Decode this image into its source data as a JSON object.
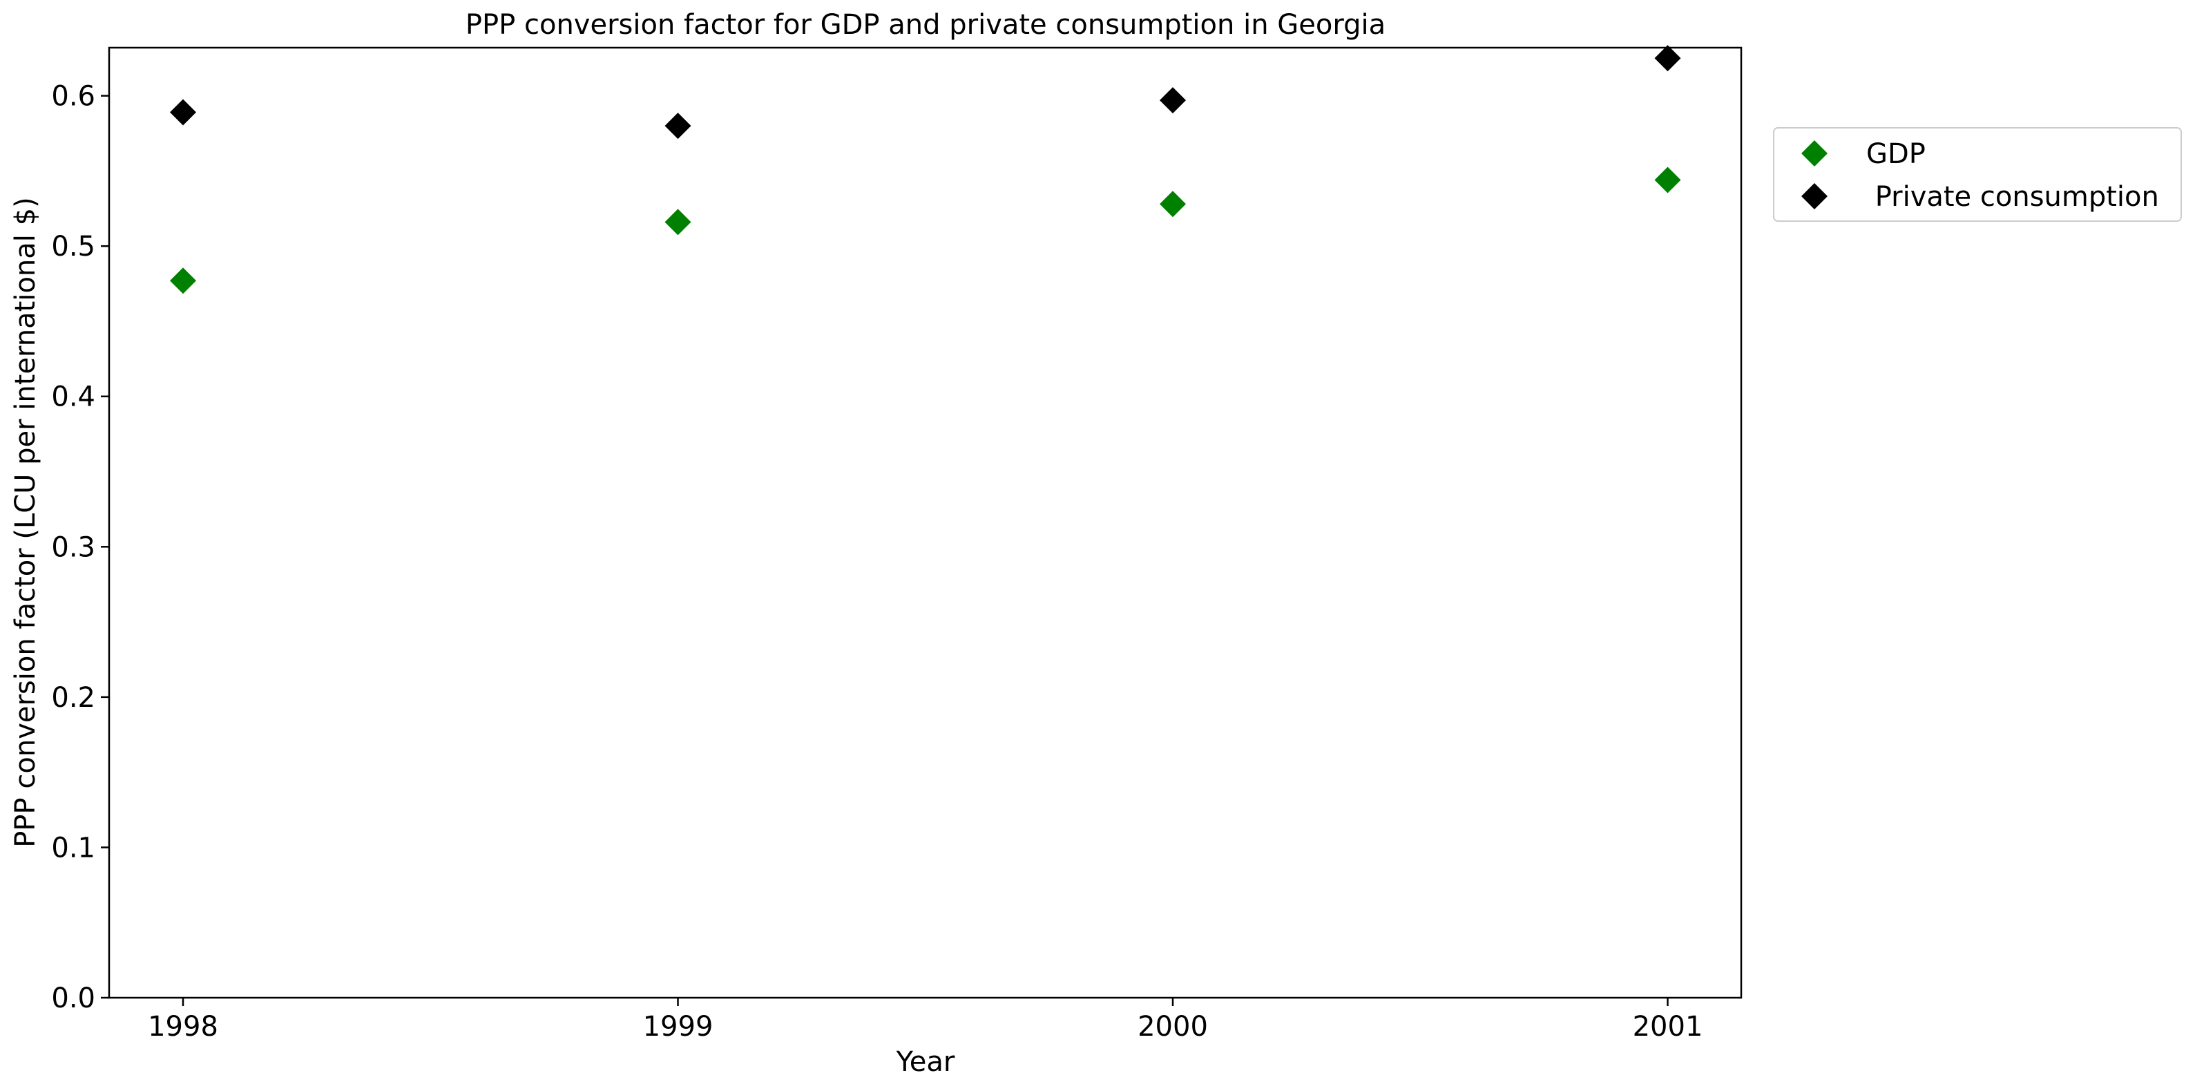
{
  "chart_data": {
    "type": "scatter",
    "title": "PPP conversion factor for GDP and private consumption in Georgia",
    "xlabel": "Year",
    "ylabel": "PPP conversion factor (LCU per international $)",
    "x": [
      "1998",
      "1999",
      "2000",
      "2001"
    ],
    "x_ticks": [
      "1998",
      "1999",
      "2000",
      "2001"
    ],
    "ylim": [
      0,
      0.632
    ],
    "y_ticks": [
      "0.0",
      "0.1",
      "0.2",
      "0.3",
      "0.4",
      "0.5",
      "0.6"
    ],
    "grid": false,
    "legend_position": "outside-upper-right",
    "marker": "diamond",
    "series": [
      {
        "name": "GDP",
        "color": "#008000",
        "values": [
          0.477,
          0.516,
          0.528,
          0.544
        ]
      },
      {
        "name": " Private consumption",
        "color": "#000000",
        "values": [
          0.589,
          0.58,
          0.597,
          0.625
        ]
      }
    ]
  }
}
